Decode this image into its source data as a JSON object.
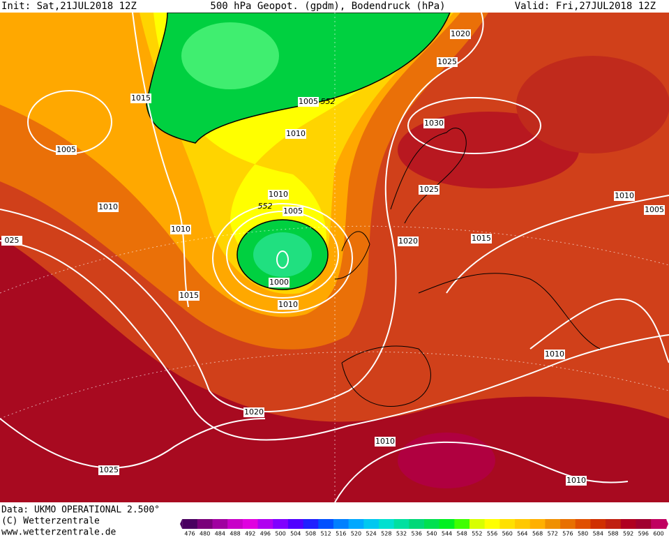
{
  "header": {
    "init": "Init: Sat,21JUL2018 12Z",
    "title": "500 hPa Geopot. (gpdm), Bodendruck (hPa)",
    "valid": "Valid: Fri,27JUL2018 12Z"
  },
  "isobar_labels": [
    "1020",
    "1025",
    "1015",
    "1005",
    "552",
    "1010",
    "1030",
    "1005",
    "1025",
    "1010",
    "552",
    "1005",
    "1010",
    "1010",
    "1005",
    "1010",
    "1020",
    "1015",
    "025",
    "1000",
    "1010",
    "1015",
    "1010",
    "1020",
    "1010",
    "1025",
    "1010"
  ],
  "footer": {
    "source": "Data: UKMO OPERATIONAL 2.500°",
    "copyright": "(C) Wetterzentrale",
    "url": "www.wetterzentrale.de"
  },
  "scale": {
    "ticks": [
      476,
      480,
      484,
      488,
      492,
      496,
      500,
      504,
      508,
      512,
      516,
      520,
      524,
      528,
      532,
      536,
      540,
      544,
      548,
      552,
      556,
      560,
      564,
      568,
      572,
      576,
      580,
      584,
      588,
      592,
      596,
      600
    ],
    "colors": [
      "#4a0060",
      "#7a007a",
      "#a000a0",
      "#c800c8",
      "#e000e0",
      "#b000f0",
      "#8000ff",
      "#5000ff",
      "#2020ff",
      "#0050ff",
      "#0080ff",
      "#00a8ff",
      "#00c8f0",
      "#00e0d0",
      "#00e0a0",
      "#00d878",
      "#00e050",
      "#00f020",
      "#40ff00",
      "#d8ff00",
      "#ffff00",
      "#ffe000",
      "#ffc800",
      "#ffb000",
      "#f09000",
      "#e87000",
      "#e05000",
      "#d03000",
      "#c02010",
      "#b00020",
      "#a00030",
      "#c00060"
    ]
  }
}
